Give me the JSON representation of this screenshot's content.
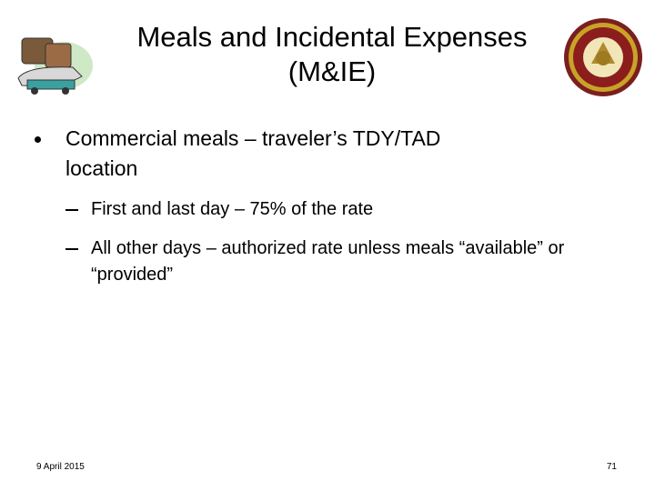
{
  "header": {
    "title_lines": [
      "Meals and Incidental Expenses",
      "(M&IE)"
    ]
  },
  "body": {
    "bullets": [
      {
        "text": "Commercial meals – traveler’s TDY/TAD location",
        "sub_bullets": [
          "First and last day – 75% of the rate",
          "All other days – authorized rate unless meals “available” or “provided”"
        ]
      }
    ]
  },
  "footer": {
    "date": "9 April 2015",
    "page_number": "71"
  }
}
